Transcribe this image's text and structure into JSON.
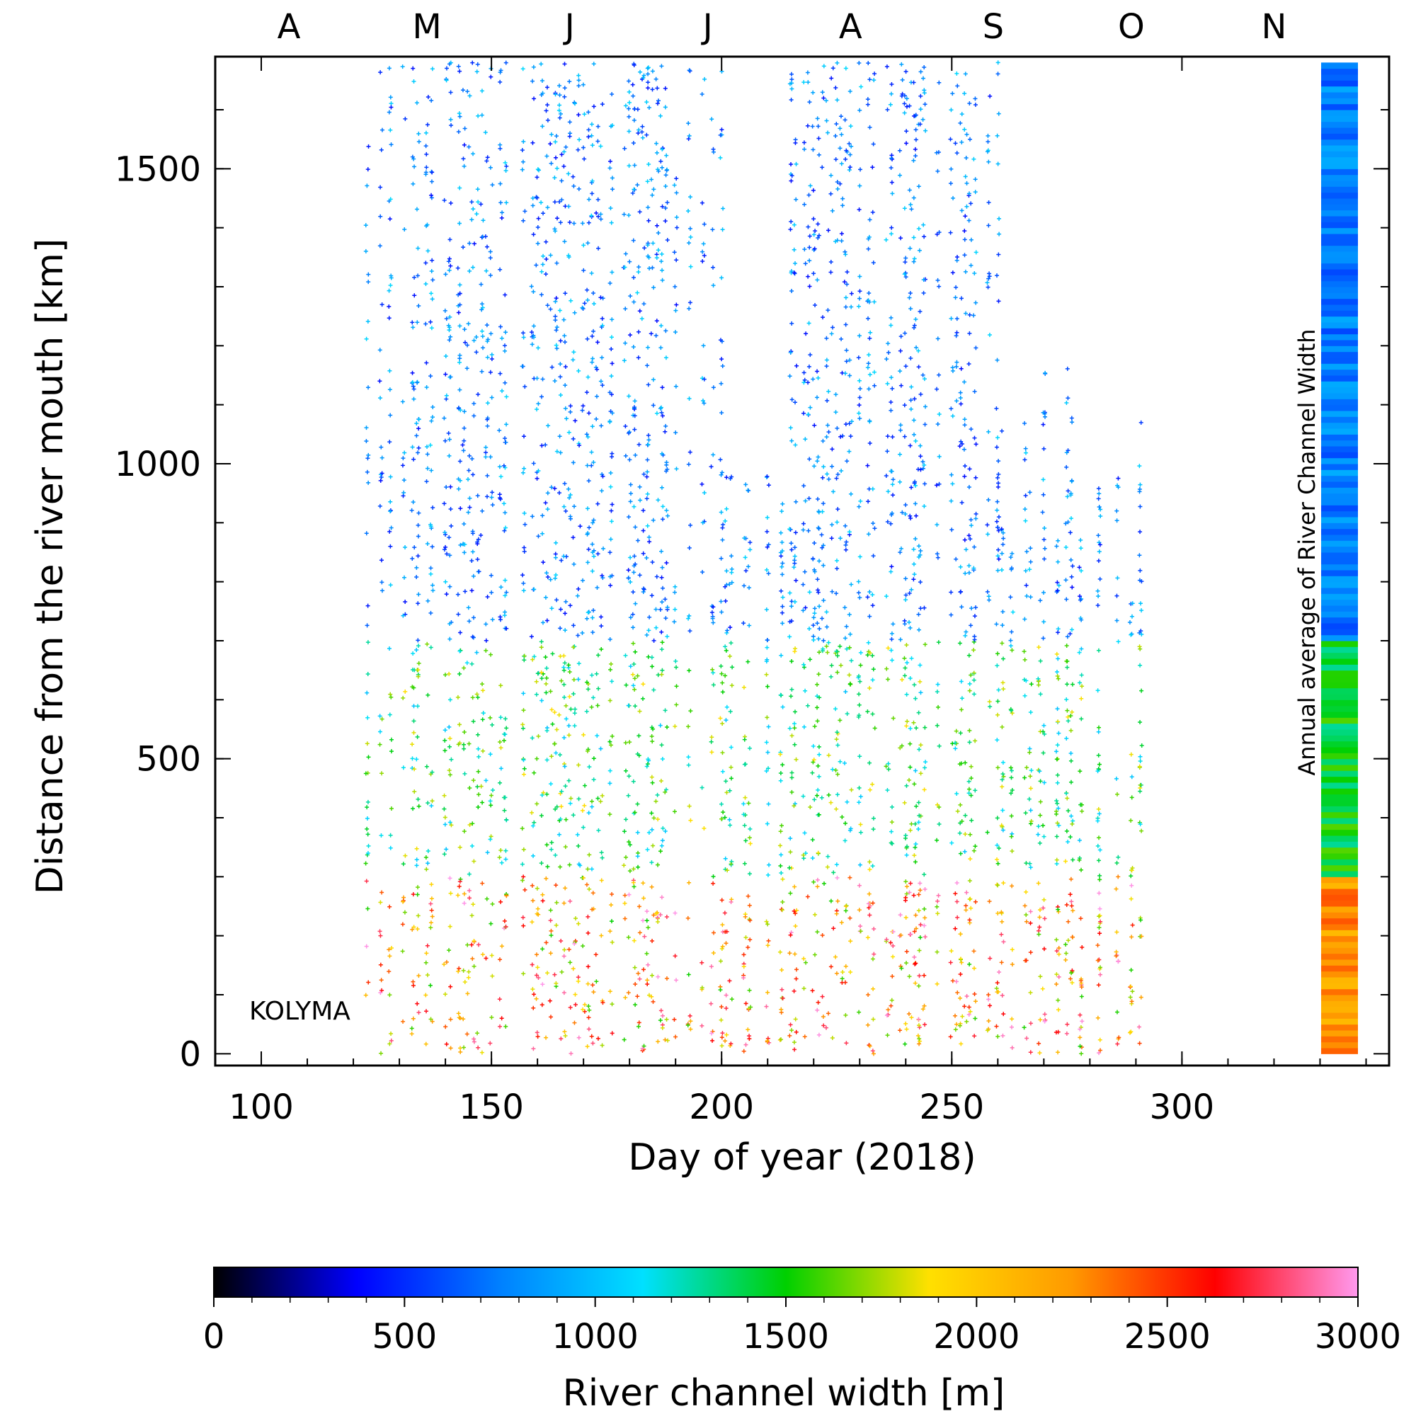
{
  "chart_data": {
    "type": "scatter",
    "xlabel": "Day of year (2018)",
    "ylabel": "Distance from the river mouth [km]",
    "xlim": [
      90,
      345
    ],
    "ylim": [
      -20,
      1690
    ],
    "x_ticks": [
      100,
      150,
      200,
      250,
      300
    ],
    "x_tick_labels": [
      "100",
      "150",
      "200",
      "250",
      "300"
    ],
    "y_ticks": [
      0,
      500,
      1000,
      1500
    ],
    "y_tick_labels": [
      "0",
      "500",
      "1000",
      "1500"
    ],
    "month_labels": [
      {
        "label": "A",
        "day": 106
      },
      {
        "label": "M",
        "day": 136
      },
      {
        "label": "J",
        "day": 167
      },
      {
        "label": "J",
        "day": 197
      },
      {
        "label": "A",
        "day": 228
      },
      {
        "label": "S",
        "day": 259
      },
      {
        "label": "O",
        "day": 289
      },
      {
        "label": "N",
        "day": 320
      }
    ],
    "annotation": "KOLYMA",
    "side_bar_label": "Annual average of River Channel Width",
    "colorbar": {
      "label": "River channel width [m]",
      "range": [
        0,
        3000
      ],
      "ticks": [
        0,
        500,
        1000,
        1500,
        2000,
        2500,
        3000
      ],
      "tick_labels": [
        "0",
        "500",
        "1000",
        "1500",
        "2000",
        "2500",
        "3000"
      ],
      "colors": [
        "#000000",
        "#0000ff",
        "#0080ff",
        "#00e0ff",
        "#00d000",
        "#ffe000",
        "#ff9900",
        "#ff0000",
        "#ff99ee"
      ]
    },
    "observation_days": [
      123,
      126,
      128,
      131,
      133,
      134,
      136,
      137,
      140,
      141,
      143,
      144,
      145,
      146,
      147,
      148,
      149,
      150,
      152,
      153,
      157,
      159,
      160,
      161,
      162,
      163,
      164,
      165,
      166,
      167,
      168,
      169,
      170,
      171,
      172,
      173,
      174,
      176,
      179,
      180,
      181,
      182,
      183,
      184,
      185,
      186,
      187,
      188,
      190,
      193,
      196,
      198,
      200,
      201,
      202,
      205,
      206,
      210,
      213,
      215,
      216,
      218,
      219,
      220,
      221,
      222,
      223,
      224,
      225,
      226,
      227,
      228,
      230,
      232,
      233,
      236,
      237,
      239,
      240,
      241,
      242,
      243,
      244,
      247,
      250,
      251,
      252,
      253,
      254,
      255,
      258,
      260,
      261,
      263,
      266,
      267,
      269,
      270,
      273,
      275,
      276,
      278,
      282,
      286,
      289,
      291
    ],
    "width_range_by_distance_km": [
      {
        "from": 0,
        "to": 300,
        "typical_width_m": [
          1500,
          3000
        ]
      },
      {
        "from": 300,
        "to": 700,
        "typical_width_m": [
          1000,
          1900
        ]
      },
      {
        "from": 700,
        "to": 1700,
        "typical_width_m": [
          400,
          1100
        ]
      }
    ],
    "grid": false
  }
}
